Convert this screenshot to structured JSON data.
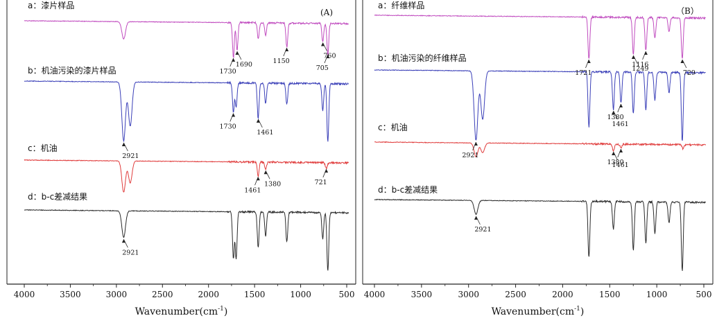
{
  "chart_data": [
    {
      "type": "line",
      "panel_label": "(A)",
      "xlabel": "Wavenumber(cm",
      "xlabel_sup": "-1",
      "xlabel_close": ")",
      "xlim": [
        4000,
        500
      ],
      "x_ticks": [
        "4000",
        "3500",
        "3000",
        "2500",
        "2000",
        "1500",
        "1000",
        "500"
      ],
      "series": [
        {
          "name": "a：漆片样品",
          "color": "#c04bbf",
          "peaks": [
            {
              "wn": 2921,
              "d": 0.5
            },
            {
              "wn": 1730,
              "d": 1.0
            },
            {
              "wn": 1690,
              "d": 0.8
            },
            {
              "wn": 1460,
              "d": 0.45
            },
            {
              "wn": 1380,
              "d": 0.35
            },
            {
              "wn": 1150,
              "d": 0.7
            },
            {
              "wn": 760,
              "d": 0.55
            },
            {
              "wn": 705,
              "d": 0.9
            }
          ]
        },
        {
          "name": "b：机油污染的漆片样品",
          "color": "#3a3fb8",
          "peaks": [
            {
              "wn": 2921,
              "d": 1.0
            },
            {
              "wn": 2850,
              "d": 0.75
            },
            {
              "wn": 1730,
              "d": 0.5
            },
            {
              "wn": 1700,
              "d": 0.4
            },
            {
              "wn": 1461,
              "d": 0.6
            },
            {
              "wn": 1380,
              "d": 0.35
            },
            {
              "wn": 1150,
              "d": 0.35
            },
            {
              "wn": 760,
              "d": 0.45
            },
            {
              "wn": 705,
              "d": 1.0
            }
          ]
        },
        {
          "name": "c：机油",
          "color": "#e03c3c",
          "peaks": [
            {
              "wn": 2921,
              "d": 1.0
            },
            {
              "wn": 2850,
              "d": 0.7
            },
            {
              "wn": 1461,
              "d": 0.45
            },
            {
              "wn": 1380,
              "d": 0.25
            },
            {
              "wn": 721,
              "d": 0.2
            }
          ]
        },
        {
          "name": "d：b-c差减结果",
          "color": "#2a2a2a",
          "peaks": [
            {
              "wn": 2921,
              "d": 0.45
            },
            {
              "wn": 1730,
              "d": 0.8
            },
            {
              "wn": 1700,
              "d": 0.8
            },
            {
              "wn": 1461,
              "d": 0.6
            },
            {
              "wn": 1380,
              "d": 0.4
            },
            {
              "wn": 1150,
              "d": 0.5
            },
            {
              "wn": 760,
              "d": 0.45
            },
            {
              "wn": 705,
              "d": 1.0
            }
          ]
        }
      ],
      "annotations": [
        {
          "text": "1730",
          "series": 0,
          "wn": 1730
        },
        {
          "text": "1690",
          "series": 0,
          "wn": 1690
        },
        {
          "text": "1150",
          "series": 0,
          "wn": 1150
        },
        {
          "text": "760",
          "series": 0,
          "wn": 760
        },
        {
          "text": "705",
          "series": 0,
          "wn": 705
        },
        {
          "text": "2921",
          "series": 1,
          "wn": 2921
        },
        {
          "text": "1730",
          "series": 1,
          "wn": 1730
        },
        {
          "text": "1461",
          "series": 1,
          "wn": 1461
        },
        {
          "text": "1461",
          "series": 2,
          "wn": 1461
        },
        {
          "text": "1380",
          "series": 2,
          "wn": 1380
        },
        {
          "text": "721",
          "series": 2,
          "wn": 721
        },
        {
          "text": "2921",
          "series": 3,
          "wn": 2921
        }
      ]
    },
    {
      "type": "line",
      "panel_label": "（B）",
      "xlabel": "Wavenumber(cm",
      "xlabel_sup": "-1",
      "xlabel_close": ")",
      "xlim": [
        4000,
        500
      ],
      "x_ticks": [
        "4000",
        "3500",
        "3000",
        "2500",
        "2000",
        "1500",
        "1000",
        "500"
      ],
      "series": [
        {
          "name": "a：纤维样品",
          "color": "#c04bbf",
          "peaks": [
            {
              "wn": 1721,
              "d": 1.0
            },
            {
              "wn": 1249,
              "d": 0.9
            },
            {
              "wn": 1116,
              "d": 0.8
            },
            {
              "wn": 1020,
              "d": 0.5
            },
            {
              "wn": 870,
              "d": 0.35
            },
            {
              "wn": 729,
              "d": 1.0
            }
          ]
        },
        {
          "name": "b：机油污染的纤维样品",
          "color": "#3a3fb8",
          "peaks": [
            {
              "wn": 2921,
              "d": 1.0
            },
            {
              "wn": 2850,
              "d": 0.7
            },
            {
              "wn": 1721,
              "d": 0.8
            },
            {
              "wn": 1461,
              "d": 0.55
            },
            {
              "wn": 1380,
              "d": 0.45
            },
            {
              "wn": 1249,
              "d": 0.6
            },
            {
              "wn": 1116,
              "d": 0.55
            },
            {
              "wn": 1020,
              "d": 0.4
            },
            {
              "wn": 870,
              "d": 0.3
            },
            {
              "wn": 729,
              "d": 1.0
            }
          ]
        },
        {
          "name": "c：机油",
          "color": "#e03c3c",
          "peaks": [
            {
              "wn": 2921,
              "d": 1.0
            },
            {
              "wn": 2850,
              "d": 0.7
            },
            {
              "wn": 1461,
              "d": 0.5
            },
            {
              "wn": 1380,
              "d": 0.3
            },
            {
              "wn": 721,
              "d": 0.3
            }
          ]
        },
        {
          "name": "d：b-c差减结果",
          "color": "#2a2a2a",
          "peaks": [
            {
              "wn": 2921,
              "d": 0.2
            },
            {
              "wn": 1721,
              "d": 0.8
            },
            {
              "wn": 1461,
              "d": 0.4
            },
            {
              "wn": 1249,
              "d": 0.7
            },
            {
              "wn": 1116,
              "d": 0.6
            },
            {
              "wn": 1020,
              "d": 0.45
            },
            {
              "wn": 870,
              "d": 0.3
            },
            {
              "wn": 729,
              "d": 1.0
            }
          ]
        }
      ],
      "annotations": [
        {
          "text": "1721",
          "series": 0,
          "wn": 1721
        },
        {
          "text": "1249",
          "series": 0,
          "wn": 1249
        },
        {
          "text": "1116",
          "series": 0,
          "wn": 1116
        },
        {
          "text": "729",
          "series": 0,
          "wn": 729
        },
        {
          "text": "2921",
          "series": 1,
          "wn": 2921
        },
        {
          "text": "1461",
          "series": 1,
          "wn": 1461
        },
        {
          "text": "1380",
          "series": 1,
          "wn": 1380
        },
        {
          "text": "1461",
          "series": 2,
          "wn": 1461
        },
        {
          "text": "1380",
          "series": 2,
          "wn": 1380
        },
        {
          "text": "2921",
          "series": 3,
          "wn": 2921
        }
      ]
    }
  ]
}
